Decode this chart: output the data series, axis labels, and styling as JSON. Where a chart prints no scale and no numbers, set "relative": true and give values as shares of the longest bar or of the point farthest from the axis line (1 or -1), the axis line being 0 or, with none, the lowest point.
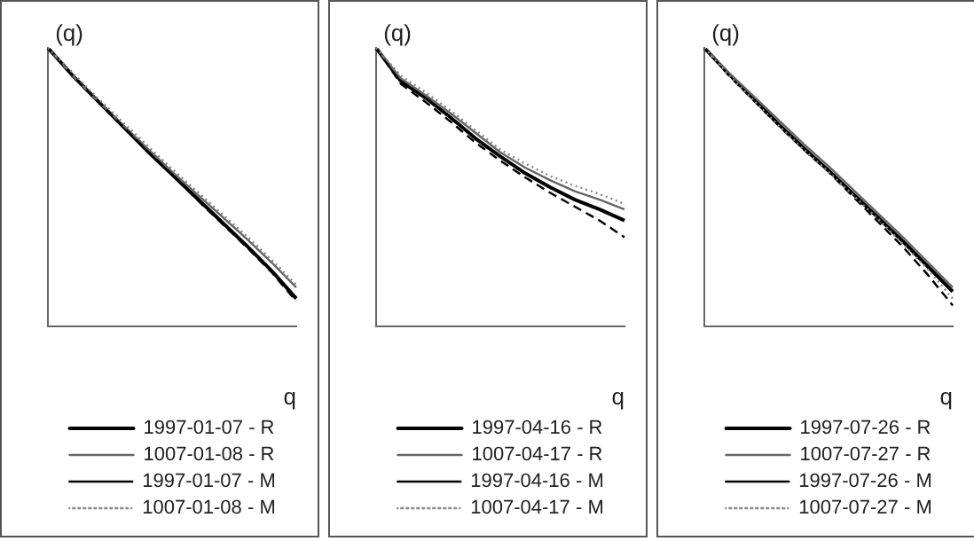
{
  "chart_data": [
    {
      "type": "line",
      "ylabel": "(q)",
      "xlabel": "q",
      "relative": true,
      "legend": "bottom",
      "marker": "none",
      "categories": [
        null,
        null,
        null,
        null,
        null,
        null,
        null,
        null,
        null,
        null,
        null
      ],
      "series": [
        {
          "name": "1997-01-07 - R",
          "color": "#000000",
          "line_style": "solid",
          "values": [
            1.0,
            0.9,
            0.81,
            0.72,
            0.63,
            0.545,
            0.46,
            0.375,
            0.29,
            0.2,
            0.1
          ]
        },
        {
          "name": "1007-01-08 - R",
          "color": "#666666",
          "line_style": "solid",
          "values": [
            1.0,
            0.9,
            0.81,
            0.725,
            0.64,
            0.555,
            0.475,
            0.395,
            0.315,
            0.23,
            0.14
          ]
        },
        {
          "name": "1997-01-07 - M",
          "color": "#000000",
          "line_style": "dashed",
          "values": [
            1.0,
            0.9,
            0.81,
            0.72,
            0.63,
            0.545,
            0.455,
            0.37,
            0.285,
            0.195,
            0.09
          ]
        },
        {
          "name": "1007-01-08 - M",
          "color": "#888888",
          "line_style": "dotted",
          "values": [
            1.0,
            0.91,
            0.82,
            0.735,
            0.65,
            0.565,
            0.485,
            0.405,
            0.325,
            0.24,
            0.15
          ]
        }
      ]
    },
    {
      "type": "line",
      "ylabel": "(q)",
      "xlabel": "q",
      "relative": true,
      "legend": "bottom",
      "marker": "none",
      "categories": [
        null,
        null,
        null,
        null,
        null,
        null,
        null,
        null,
        null,
        null,
        null
      ],
      "series": [
        {
          "name": "1997-04-16 - R",
          "color": "#000000",
          "line_style": "solid",
          "values": [
            1.0,
            0.88,
            0.82,
            0.75,
            0.675,
            0.61,
            0.55,
            0.5,
            0.455,
            0.42,
            0.38
          ]
        },
        {
          "name": "1007-04-17 - R",
          "color": "#666666",
          "line_style": "solid",
          "values": [
            1.0,
            0.89,
            0.83,
            0.765,
            0.695,
            0.625,
            0.57,
            0.525,
            0.485,
            0.455,
            0.42
          ]
        },
        {
          "name": "1997-04-16 - M",
          "color": "#000000",
          "line_style": "dashed",
          "values": [
            1.0,
            0.87,
            0.805,
            0.735,
            0.66,
            0.595,
            0.535,
            0.48,
            0.43,
            0.38,
            0.32
          ]
        },
        {
          "name": "1007-04-17 - M",
          "color": "#888888",
          "line_style": "dotted",
          "values": [
            1.0,
            0.9,
            0.84,
            0.775,
            0.705,
            0.635,
            0.585,
            0.54,
            0.505,
            0.475,
            0.44
          ]
        }
      ]
    },
    {
      "type": "line",
      "ylabel": "(q)",
      "xlabel": "q",
      "relative": true,
      "legend": "bottom",
      "marker": "none",
      "categories": [
        null,
        null,
        null,
        null,
        null,
        null,
        null,
        null,
        null,
        null,
        null
      ],
      "series": [
        {
          "name": "1997-07-26 - R",
          "color": "#000000",
          "line_style": "solid",
          "values": [
            1.0,
            0.905,
            0.815,
            0.725,
            0.64,
            0.56,
            0.475,
            0.39,
            0.305,
            0.215,
            0.125
          ]
        },
        {
          "name": "1007-07-27 - R",
          "color": "#666666",
          "line_style": "solid",
          "values": [
            1.0,
            0.91,
            0.825,
            0.74,
            0.655,
            0.575,
            0.49,
            0.405,
            0.32,
            0.23,
            0.14
          ]
        },
        {
          "name": "1997-07-26 - M",
          "color": "#000000",
          "line_style": "dashed",
          "values": [
            1.0,
            0.9,
            0.81,
            0.72,
            0.635,
            0.555,
            0.465,
            0.375,
            0.285,
            0.185,
            0.075
          ]
        },
        {
          "name": "1007-07-27 - M",
          "color": "#888888",
          "line_style": "dotted",
          "values": [
            1.0,
            0.9,
            0.81,
            0.72,
            0.635,
            0.555,
            0.47,
            0.385,
            0.295,
            0.205,
            0.1
          ]
        }
      ]
    }
  ]
}
